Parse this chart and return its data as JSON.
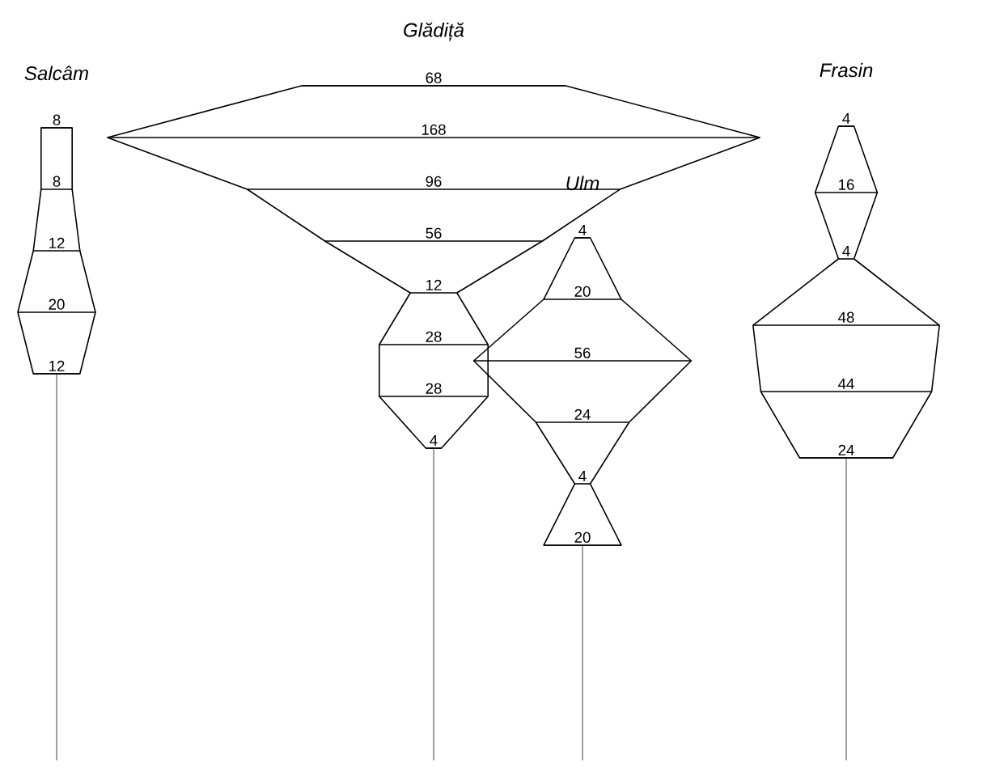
{
  "chart_data": [
    {
      "type": "other",
      "title": "Salcâm",
      "values": [
        8,
        8,
        12,
        20,
        12
      ],
      "data_labels": true
    },
    {
      "type": "other",
      "title": "Glădiță",
      "values": [
        68,
        168,
        96,
        56,
        12,
        28,
        28,
        4
      ],
      "data_labels": true
    },
    {
      "type": "other",
      "title": "Ulm",
      "values": [
        4,
        20,
        56,
        24,
        4,
        20
      ],
      "data_labels": true
    },
    {
      "type": "other",
      "title": "Frasin",
      "values": [
        4,
        16,
        4,
        48,
        44,
        24
      ],
      "data_labels": true
    }
  ]
}
